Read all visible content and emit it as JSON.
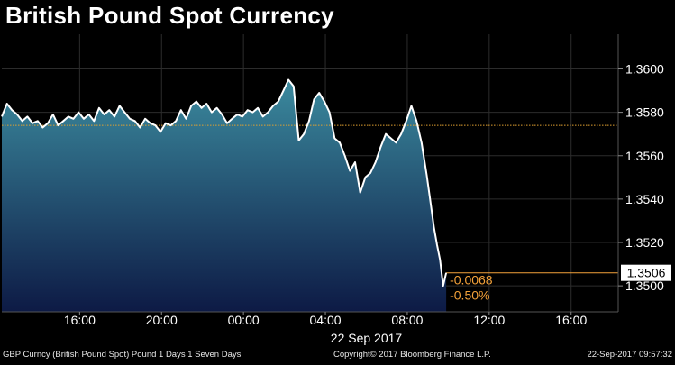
{
  "title": "British Pound Spot Currency",
  "chart_data": {
    "type": "area",
    "title": "British Pound Spot Currency",
    "xlabel": "22 Sep 2017",
    "ylabel": "",
    "x_tick_labels": [
      "16:00",
      "20:00",
      "00:00",
      "04:00",
      "08:00",
      "12:00",
      "16:00"
    ],
    "x_tick_hours": [
      16,
      20,
      24,
      28,
      32,
      36,
      40
    ],
    "date_label": "22 Sep 2017",
    "y_tick_labels": [
      "1.3600",
      "1.3580",
      "1.3560",
      "1.3540",
      "1.3520",
      "1.3500"
    ],
    "ylim": [
      1.3488,
      1.3616
    ],
    "xlim_hours": [
      12.2,
      42.3
    ],
    "grid": true,
    "reference_close": 1.3574,
    "last_value": "1.3506",
    "change_abs": "-0.0068",
    "change_pct": "-0.50%",
    "series": [
      {
        "hours": [
          12.2,
          12.45,
          12.7,
          12.95,
          13.2,
          13.45,
          13.7,
          13.95,
          14.2,
          14.45,
          14.7,
          14.95,
          15.2,
          15.45,
          15.7,
          15.95,
          16.2,
          16.45,
          16.7,
          16.95,
          17.2,
          17.45,
          17.7,
          17.95,
          18.2,
          18.45,
          18.7,
          18.95,
          19.2,
          19.45,
          19.7,
          19.95,
          20.2,
          20.45,
          20.7,
          20.95,
          21.2,
          21.45,
          21.7,
          21.95,
          22.2,
          22.45,
          22.7,
          22.95,
          23.2,
          23.45,
          23.7,
          23.95,
          24.2,
          24.45,
          24.7,
          24.95,
          25.2,
          25.45,
          25.7,
          25.95,
          26.2,
          26.45,
          26.7,
          26.95,
          27.2,
          27.45,
          27.7,
          27.95,
          28.2,
          28.45,
          28.7,
          28.95,
          29.2,
          29.45,
          29.7,
          29.95,
          30.2,
          30.45,
          30.7,
          30.95,
          31.2,
          31.45,
          31.7,
          31.95,
          32.2,
          32.45,
          32.7,
          32.95,
          33.1,
          33.3,
          33.45,
          33.6,
          33.75,
          33.9
        ],
        "values": [
          1.3578,
          1.3584,
          1.3581,
          1.3579,
          1.3576,
          1.3578,
          1.3575,
          1.3576,
          1.3573,
          1.3575,
          1.3579,
          1.3574,
          1.3576,
          1.3578,
          1.3577,
          1.358,
          1.3577,
          1.3579,
          1.3576,
          1.3582,
          1.3579,
          1.3581,
          1.3578,
          1.3583,
          1.358,
          1.3577,
          1.3576,
          1.3573,
          1.3577,
          1.3575,
          1.3574,
          1.3571,
          1.3575,
          1.3574,
          1.3576,
          1.3581,
          1.3577,
          1.3583,
          1.3585,
          1.3582,
          1.3584,
          1.358,
          1.3582,
          1.3579,
          1.3575,
          1.3577,
          1.3579,
          1.3578,
          1.3581,
          1.358,
          1.3582,
          1.3578,
          1.358,
          1.3583,
          1.3585,
          1.359,
          1.3595,
          1.3592,
          1.3567,
          1.357,
          1.3576,
          1.3586,
          1.3589,
          1.3585,
          1.358,
          1.3568,
          1.3566,
          1.356,
          1.3553,
          1.3557,
          1.3543,
          1.355,
          1.3552,
          1.3557,
          1.3564,
          1.357,
          1.3568,
          1.3566,
          1.357,
          1.3576,
          1.3583,
          1.3576,
          1.3566,
          1.3551,
          1.3541,
          1.3527,
          1.3519,
          1.3512,
          1.35,
          1.3506
        ]
      }
    ]
  },
  "footer": {
    "left": "GBP Curncy (British Pound Spot) Pound 1 Days 1 Seven Days",
    "center": "Copyright© 2017 Bloomberg Finance L.P.",
    "right": "22-Sep-2017 09:57:32"
  },
  "colors": {
    "background": "#000000",
    "area_top": "#3b8a9e",
    "area_bottom": "#0d1a45",
    "line": "#ffffff",
    "reference_line": "#e0a030",
    "annotation": "#f4a23a",
    "grid": "#2c2c2c"
  }
}
